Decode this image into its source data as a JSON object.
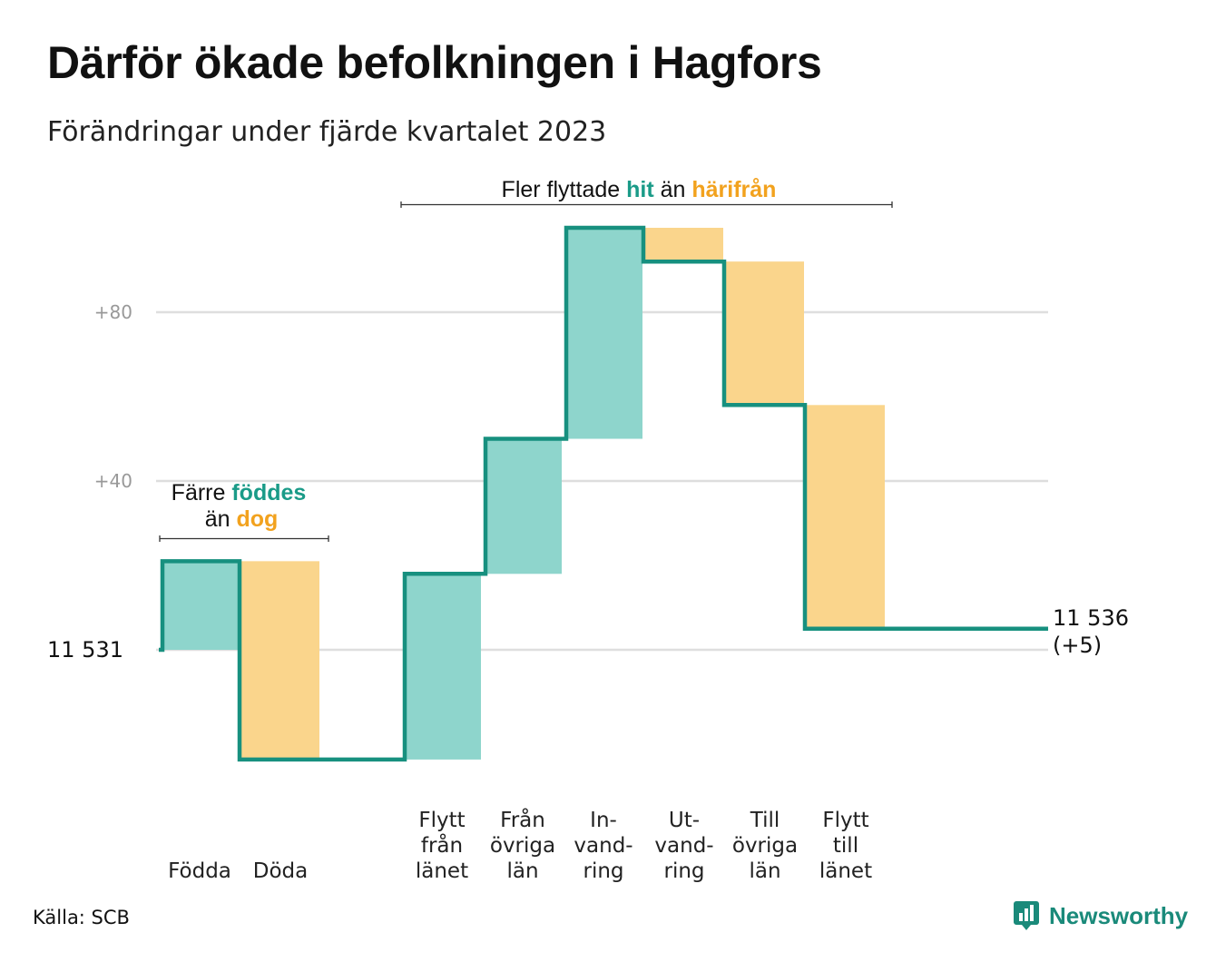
{
  "title": "Därför ökade befolkningen i Hagfors",
  "subtitle": "Förändringar under fjärde kvartalet 2023",
  "source": "Källa: SCB",
  "logo_text": "Newsworthy",
  "colors": {
    "increase": "#8ed5cc",
    "decrease": "#fad58c",
    "line": "#17907f",
    "grid": "#dedede",
    "accent_in": "#1a9b88",
    "accent_out": "#f2a21e"
  },
  "annotations": {
    "natural": {
      "line1_a": "Färre ",
      "line1_b": "föddes",
      "line2_a": "än ",
      "line2_b": "dog"
    },
    "migration": {
      "part1": "Fler flyttade ",
      "part2": "hit",
      "part3": " än ",
      "part4": "härifrån"
    }
  },
  "chart_data": {
    "type": "waterfall",
    "start": {
      "label": "11  531",
      "value": 11531
    },
    "end": {
      "label": "11 536",
      "change_label": "(+5)",
      "value": 11536
    },
    "y_ticks": [
      {
        "value": 40,
        "label": "+40"
      },
      {
        "value": 80,
        "label": "+80"
      }
    ],
    "grid": true,
    "steps": [
      {
        "label": [
          "Födda"
        ],
        "change": 21,
        "kind": "increase"
      },
      {
        "label": [
          "Döda"
        ],
        "change": -47,
        "kind": "decrease"
      },
      {
        "label": [],
        "change": 0,
        "kind": "gap"
      },
      {
        "label": [
          "Flytt",
          "från",
          "länet"
        ],
        "change": 44,
        "kind": "increase"
      },
      {
        "label": [
          "Från",
          "övriga",
          "län"
        ],
        "change": 32,
        "kind": "increase"
      },
      {
        "label": [
          "In-",
          "vand-",
          "ring"
        ],
        "change": 50,
        "kind": "increase"
      },
      {
        "label": [
          "Ut-",
          "vand-",
          "ring"
        ],
        "change": -8,
        "kind": "decrease"
      },
      {
        "label": [
          "Till",
          "övriga",
          "län"
        ],
        "change": -34,
        "kind": "decrease"
      },
      {
        "label": [
          "Flytt",
          "till",
          "länet"
        ],
        "change": -53,
        "kind": "decrease"
      }
    ]
  }
}
